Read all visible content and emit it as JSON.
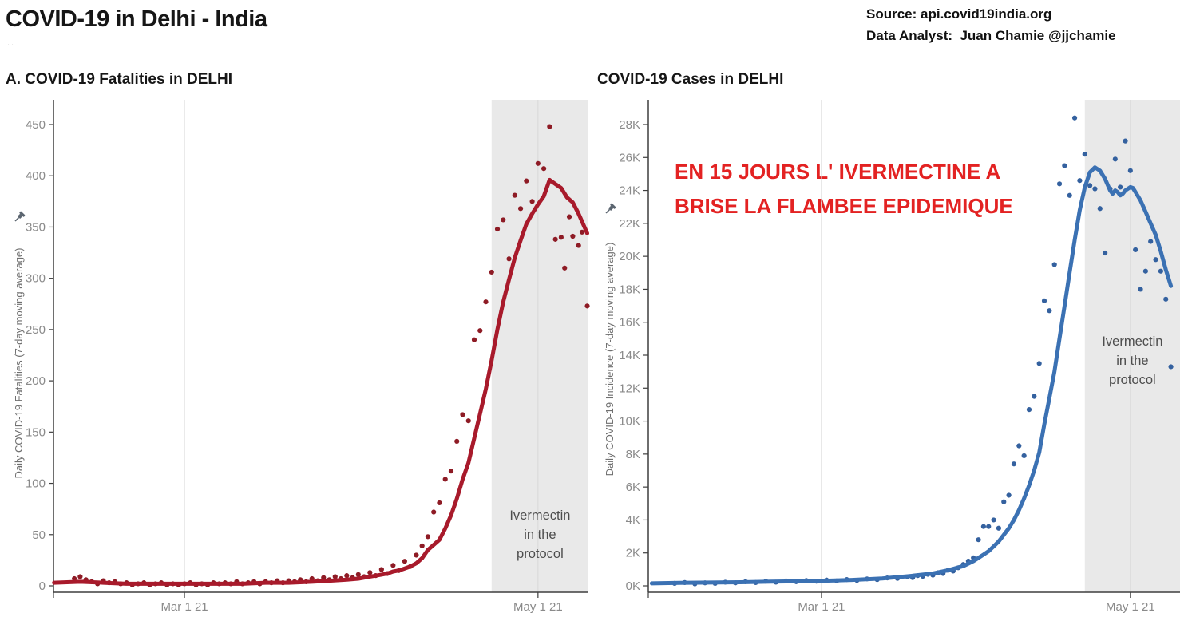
{
  "header": {
    "title": "COVID-19 in Delhi - India",
    "subtitle_dots": "..",
    "source_line1": "Source: api.covid19india.org",
    "source_line2": "Data Analyst:  Juan Chamie @jjchamie"
  },
  "annotation": {
    "line1": "EN 15 JOURS L' IVERMECTINE A",
    "line2": "BRISE LA FLAMBEE EPIDEMIQUE",
    "color": "#e32222"
  },
  "colors": {
    "fatalities_line": "#a81a2b",
    "fatalities_dots": "#8e1b25",
    "cases_line": "#3b71b3",
    "cases_dots": "#34619f",
    "band_fill": "#e9e9e9",
    "gridline": "#d8d8d8",
    "axis": "#3f3f3f",
    "tick_label": "#8a8a8a",
    "y_axis_title": "#6f6f6f",
    "band_label_text": "#4e4e4e"
  },
  "day_index_note": "x encoded as days since Feb 1 2021 (Mar 1 21 = 28, May 1 21 = 89); only the two tick labels are visible in the image",
  "chart_data": [
    {
      "type": "scatter+line",
      "title": "A. COVID-19 Fatalities in DELHI",
      "ylabel": "Daily COVID-19 Fatalities (7-day moving average)",
      "ylim": [
        0,
        475
      ],
      "y_ticks": [
        0,
        50,
        100,
        150,
        200,
        250,
        300,
        350,
        400,
        450
      ],
      "y_tick_labels": [
        "0",
        "50",
        "100",
        "150",
        "200",
        "250",
        "300",
        "350",
        "400",
        "450"
      ],
      "x_ticks": [
        {
          "day": 28,
          "label": "Mar 1 21"
        },
        {
          "day": 89,
          "label": "May 1 21"
        }
      ],
      "day_domain": [
        5.4,
        97.7
      ],
      "grid": "vertical gridlines at x ticks only",
      "legend": "none",
      "band": {
        "day_start": 81,
        "day_end": 97.7,
        "label_lines": [
          "Ivermectin",
          "in the",
          "protocol"
        ]
      },
      "ma_line": [
        [
          5.5,
          3
        ],
        [
          10,
          4
        ],
        [
          14,
          3
        ],
        [
          18,
          2
        ],
        [
          22,
          2
        ],
        [
          26,
          2
        ],
        [
          30,
          2
        ],
        [
          34,
          2
        ],
        [
          38,
          2
        ],
        [
          42,
          3
        ],
        [
          46,
          3
        ],
        [
          50,
          4
        ],
        [
          53,
          5
        ],
        [
          56,
          6
        ],
        [
          58,
          7
        ],
        [
          60,
          9
        ],
        [
          61,
          10
        ],
        [
          62,
          11
        ],
        [
          63,
          12
        ],
        [
          64,
          14
        ],
        [
          65,
          15
        ],
        [
          66,
          17
        ],
        [
          67,
          19
        ],
        [
          68,
          22
        ],
        [
          69,
          27
        ],
        [
          70,
          35
        ],
        [
          71,
          40
        ],
        [
          72,
          45
        ],
        [
          73,
          56
        ],
        [
          74,
          69
        ],
        [
          75,
          85
        ],
        [
          76,
          104
        ],
        [
          77,
          120
        ],
        [
          78,
          144
        ],
        [
          79,
          168
        ],
        [
          80,
          192
        ],
        [
          81,
          220
        ],
        [
          82,
          250
        ],
        [
          83,
          277
        ],
        [
          84,
          299
        ],
        [
          85,
          320
        ],
        [
          86,
          337
        ],
        [
          87,
          353
        ],
        [
          88,
          363
        ],
        [
          89,
          372
        ],
        [
          90,
          380
        ],
        [
          91,
          396
        ],
        [
          92,
          392
        ],
        [
          93,
          388
        ],
        [
          94,
          379
        ],
        [
          95,
          374
        ],
        [
          96,
          363
        ],
        [
          97.5,
          344
        ]
      ],
      "daily_dots": [
        [
          9,
          7
        ],
        [
          10,
          9
        ],
        [
          11,
          6
        ],
        [
          12,
          4
        ],
        [
          13,
          2
        ],
        [
          14,
          5
        ],
        [
          15,
          3
        ],
        [
          16,
          4
        ],
        [
          17,
          2
        ],
        [
          18,
          3
        ],
        [
          19,
          1
        ],
        [
          20,
          2
        ],
        [
          21,
          3
        ],
        [
          22,
          1
        ],
        [
          23,
          2
        ],
        [
          24,
          3
        ],
        [
          25,
          1
        ],
        [
          26,
          2
        ],
        [
          27,
          1
        ],
        [
          28,
          2
        ],
        [
          29,
          3
        ],
        [
          30,
          1
        ],
        [
          31,
          2
        ],
        [
          32,
          1
        ],
        [
          33,
          3
        ],
        [
          34,
          2
        ],
        [
          35,
          3
        ],
        [
          36,
          2
        ],
        [
          37,
          4
        ],
        [
          38,
          2
        ],
        [
          39,
          3
        ],
        [
          40,
          4
        ],
        [
          41,
          2
        ],
        [
          42,
          4
        ],
        [
          43,
          3
        ],
        [
          44,
          5
        ],
        [
          45,
          3
        ],
        [
          46,
          5
        ],
        [
          47,
          4
        ],
        [
          48,
          6
        ],
        [
          49,
          4
        ],
        [
          50,
          7
        ],
        [
          51,
          5
        ],
        [
          52,
          8
        ],
        [
          53,
          6
        ],
        [
          54,
          9
        ],
        [
          55,
          7
        ],
        [
          56,
          10
        ],
        [
          57,
          8
        ],
        [
          58,
          11
        ],
        [
          59,
          9
        ],
        [
          60,
          13
        ],
        [
          61,
          10
        ],
        [
          62,
          16
        ],
        [
          63,
          12
        ],
        [
          64,
          20
        ],
        [
          65,
          15
        ],
        [
          66,
          24
        ],
        [
          67,
          19
        ],
        [
          68,
          30
        ],
        [
          69,
          39
        ],
        [
          70,
          48
        ],
        [
          71,
          72
        ],
        [
          72,
          81
        ],
        [
          73,
          104
        ],
        [
          74,
          112
        ],
        [
          75,
          141
        ],
        [
          76,
          167
        ],
        [
          77,
          161
        ],
        [
          78,
          240
        ],
        [
          79,
          249
        ],
        [
          80,
          277
        ],
        [
          81,
          306
        ],
        [
          82,
          348
        ],
        [
          83,
          357
        ],
        [
          84,
          319
        ],
        [
          85,
          381
        ],
        [
          86,
          368
        ],
        [
          87,
          395
        ],
        [
          88,
          375
        ],
        [
          89,
          412
        ],
        [
          90,
          407
        ],
        [
          91,
          448
        ],
        [
          92,
          338
        ],
        [
          93,
          340
        ],
        [
          93.6,
          310
        ],
        [
          94.4,
          360
        ],
        [
          95,
          341
        ],
        [
          96,
          332
        ],
        [
          96.6,
          345
        ],
        [
          97.5,
          273
        ]
      ]
    },
    {
      "type": "scatter+line",
      "title": "COVID-19 Cases in DELHI",
      "ylabel": "Daily COVID-19 Incidence (7-day moving average)",
      "ylim": [
        0,
        29
      ],
      "unit": "thousands",
      "y_ticks": [
        0,
        2,
        4,
        6,
        8,
        10,
        12,
        14,
        16,
        18,
        20,
        22,
        24,
        26,
        28
      ],
      "y_tick_labels": [
        "0K",
        "2K",
        "4K",
        "6K",
        "8K",
        "10K",
        "12K",
        "14K",
        "16K",
        "18K",
        "20K",
        "22K",
        "24K",
        "26K",
        "28K"
      ],
      "x_ticks": [
        {
          "day": 28,
          "label": "Mar 1 21"
        },
        {
          "day": 89,
          "label": "May 1 21"
        }
      ],
      "day_domain": [
        -6.2,
        98.8
      ],
      "grid": "vertical gridlines at x ticks only",
      "legend": "none",
      "band": {
        "day_start": 80,
        "day_end": 98.8,
        "label_lines": [
          "Ivermectin",
          "in the",
          "protocol"
        ]
      },
      "ma_line": [
        [
          -5.5,
          0.15
        ],
        [
          0,
          0.18
        ],
        [
          6,
          0.2
        ],
        [
          12,
          0.22
        ],
        [
          18,
          0.25
        ],
        [
          24,
          0.28
        ],
        [
          28,
          0.3
        ],
        [
          34,
          0.36
        ],
        [
          40,
          0.45
        ],
        [
          45,
          0.58
        ],
        [
          50,
          0.75
        ],
        [
          53,
          0.95
        ],
        [
          56,
          1.2
        ],
        [
          58,
          1.5
        ],
        [
          60,
          1.9
        ],
        [
          61,
          2.1
        ],
        [
          62,
          2.4
        ],
        [
          63,
          2.7
        ],
        [
          64,
          3.1
        ],
        [
          65,
          3.5
        ],
        [
          66,
          4.0
        ],
        [
          67,
          4.6
        ],
        [
          68,
          5.3
        ],
        [
          69,
          6.1
        ],
        [
          70,
          7.0
        ],
        [
          71,
          8.1
        ],
        [
          72,
          9.8
        ],
        [
          73,
          11.4
        ],
        [
          74,
          13.0
        ],
        [
          75,
          15.0
        ],
        [
          76,
          17.0
        ],
        [
          77,
          19.0
        ],
        [
          78,
          21.0
        ],
        [
          79,
          22.8
        ],
        [
          80,
          24.2
        ],
        [
          81,
          25.1
        ],
        [
          82,
          25.4
        ],
        [
          83,
          25.2
        ],
        [
          84,
          24.7
        ],
        [
          85,
          24.0
        ],
        [
          85.5,
          23.8
        ],
        [
          86,
          24.0
        ],
        [
          86.5,
          23.9
        ],
        [
          87,
          23.7
        ],
        [
          87.5,
          23.8
        ],
        [
          88,
          24.0
        ],
        [
          89,
          24.2
        ],
        [
          89.5,
          24.15
        ],
        [
          90,
          23.9
        ],
        [
          91,
          23.4
        ],
        [
          92,
          22.7
        ],
        [
          93,
          22.0
        ],
        [
          94,
          21.3
        ],
        [
          95,
          20.3
        ],
        [
          96,
          19.2
        ],
        [
          97,
          18.2
        ]
      ],
      "daily_dots": [
        [
          -1,
          0.15
        ],
        [
          1,
          0.2
        ],
        [
          3,
          0.12
        ],
        [
          5,
          0.18
        ],
        [
          7,
          0.15
        ],
        [
          9,
          0.22
        ],
        [
          11,
          0.18
        ],
        [
          13,
          0.25
        ],
        [
          15,
          0.2
        ],
        [
          17,
          0.28
        ],
        [
          19,
          0.22
        ],
        [
          21,
          0.3
        ],
        [
          23,
          0.25
        ],
        [
          25,
          0.32
        ],
        [
          27,
          0.28
        ],
        [
          29,
          0.35
        ],
        [
          31,
          0.3
        ],
        [
          33,
          0.38
        ],
        [
          35,
          0.33
        ],
        [
          37,
          0.42
        ],
        [
          39,
          0.38
        ],
        [
          41,
          0.48
        ],
        [
          43,
          0.45
        ],
        [
          45,
          0.55
        ],
        [
          46,
          0.5
        ],
        [
          47,
          0.62
        ],
        [
          48,
          0.58
        ],
        [
          49,
          0.7
        ],
        [
          50,
          0.65
        ],
        [
          51,
          0.8
        ],
        [
          52,
          0.75
        ],
        [
          53,
          0.95
        ],
        [
          54,
          0.9
        ],
        [
          55,
          1.1
        ],
        [
          56,
          1.3
        ],
        [
          57,
          1.5
        ],
        [
          58,
          1.7
        ],
        [
          59,
          2.8
        ],
        [
          60,
          3.6
        ],
        [
          61,
          3.6
        ],
        [
          62,
          4.0
        ],
        [
          63,
          3.5
        ],
        [
          64,
          5.1
        ],
        [
          65,
          5.5
        ],
        [
          66,
          7.4
        ],
        [
          67,
          8.5
        ],
        [
          68,
          7.9
        ],
        [
          69,
          10.7
        ],
        [
          70,
          11.5
        ],
        [
          71,
          13.5
        ],
        [
          72,
          17.3
        ],
        [
          73,
          16.7
        ],
        [
          74,
          19.5
        ],
        [
          75,
          24.4
        ],
        [
          76,
          25.5
        ],
        [
          77,
          23.7
        ],
        [
          78,
          28.4
        ],
        [
          79,
          24.6
        ],
        [
          80,
          26.2
        ],
        [
          81,
          24.3
        ],
        [
          82,
          24.1
        ],
        [
          83,
          22.9
        ],
        [
          84,
          20.2
        ],
        [
          85,
          24.1
        ],
        [
          86,
          25.9
        ],
        [
          87,
          24.2
        ],
        [
          88,
          27.0
        ],
        [
          89,
          25.2
        ],
        [
          90,
          20.4
        ],
        [
          91,
          18.0
        ],
        [
          92,
          19.1
        ],
        [
          93,
          20.9
        ],
        [
          94,
          19.8
        ],
        [
          95,
          19.1
        ],
        [
          96,
          17.4
        ],
        [
          97,
          13.3
        ]
      ]
    }
  ]
}
